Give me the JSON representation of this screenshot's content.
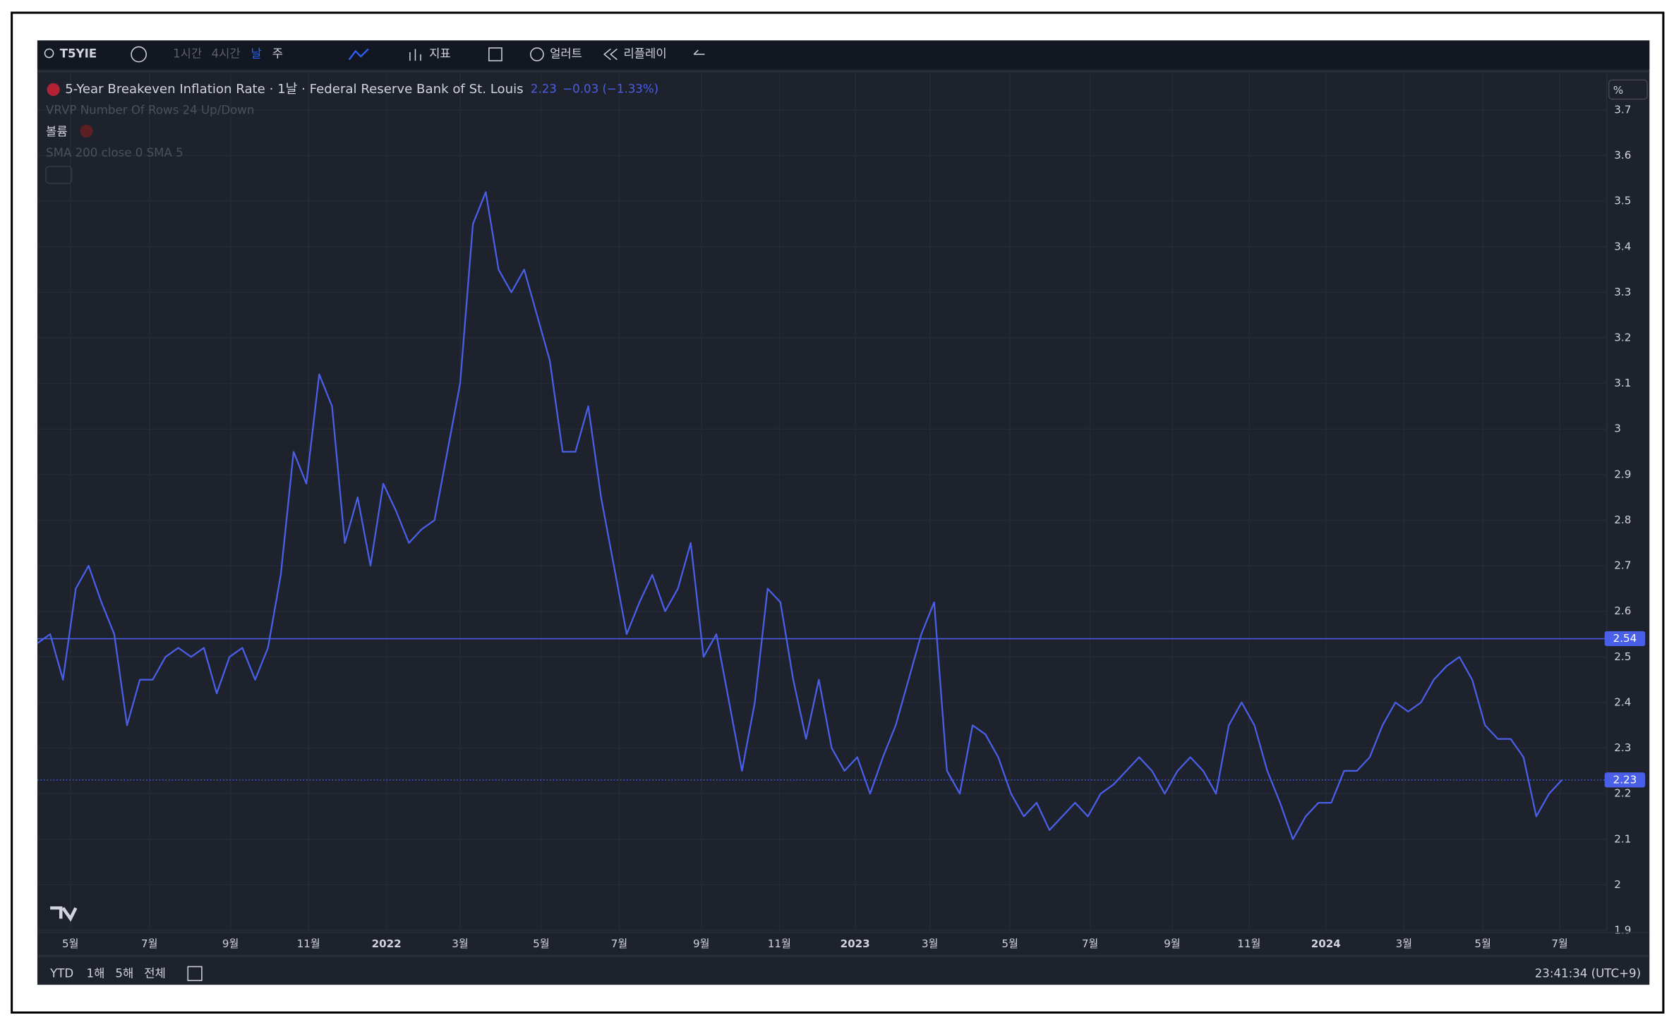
{
  "toolbar": {
    "symbol": "T5YIE",
    "intervals": [
      "1시간",
      "4시간",
      "날",
      "주"
    ],
    "indicators": "지표",
    "alert": "얼러트",
    "replay": "리플레이"
  },
  "legend": {
    "title": "5-Year Breakeven Inflation Rate · 1날 · Federal Reserve Bank of St. Louis",
    "last": "2.23",
    "change": "−0.03 (−1.33%)",
    "studies": [
      "VRVP Number Of Rows 24 Up/Down",
      "볼륨",
      "SMA 200 close 0 SMA 5"
    ]
  },
  "chart_data": {
    "type": "line",
    "color": "#4a5fe8",
    "unit": "%",
    "values": [
      2.53,
      2.55,
      2.45,
      2.65,
      2.7,
      2.62,
      2.55,
      2.35,
      2.45,
      2.45,
      2.5,
      2.52,
      2.5,
      2.52,
      2.42,
      2.5,
      2.52,
      2.45,
      2.52,
      2.68,
      2.95,
      2.88,
      3.12,
      3.05,
      2.75,
      2.85,
      2.7,
      2.88,
      2.82,
      2.75,
      2.78,
      2.8,
      2.95,
      3.1,
      3.45,
      3.52,
      3.35,
      3.3,
      3.35,
      3.25,
      3.15,
      2.95,
      2.95,
      3.05,
      2.85,
      2.7,
      2.55,
      2.62,
      2.68,
      2.6,
      2.65,
      2.75,
      2.5,
      2.55,
      2.4,
      2.25,
      2.4,
      2.65,
      2.62,
      2.45,
      2.32,
      2.45,
      2.3,
      2.25,
      2.28,
      2.2,
      2.28,
      2.35,
      2.45,
      2.55,
      2.62,
      2.25,
      2.2,
      2.35,
      2.33,
      2.28,
      2.2,
      2.15,
      2.18,
      2.12,
      2.15,
      2.18,
      2.15,
      2.2,
      2.22,
      2.25,
      2.28,
      2.25,
      2.2,
      2.25,
      2.28,
      2.25,
      2.2,
      2.35,
      2.4,
      2.35,
      2.25,
      2.18,
      2.1,
      2.15,
      2.18,
      2.18,
      2.25,
      2.25,
      2.28,
      2.35,
      2.4,
      2.38,
      2.4,
      2.45,
      2.48,
      2.5,
      2.45,
      2.35,
      2.32,
      2.32,
      2.28,
      2.15,
      2.2,
      2.23
    ],
    "ylim": [
      1.9,
      3.78
    ],
    "yticks": [
      1.9,
      2,
      2.1,
      2.2,
      2.3,
      2.4,
      2.5,
      2.6,
      2.7,
      2.8,
      2.9,
      3,
      3.1,
      3.2,
      3.3,
      3.4,
      3.5,
      3.6,
      3.7
    ],
    "xticks": [
      {
        "value": 2.58,
        "label": "5월"
      },
      {
        "value": 8.75,
        "label": "7월"
      },
      {
        "value": 15.08,
        "label": "9월"
      },
      {
        "value": 21.17,
        "label": "11월"
      },
      {
        "value": 27.25,
        "label": "2022"
      },
      {
        "value": 33,
        "label": "3월"
      },
      {
        "value": 39.33,
        "label": "5월"
      },
      {
        "value": 45.42,
        "label": "7월"
      },
      {
        "value": 51.83,
        "label": "9월"
      },
      {
        "value": 57.92,
        "label": "11월"
      },
      {
        "value": 63.83,
        "label": "2023"
      },
      {
        "value": 69.67,
        "label": "3월"
      },
      {
        "value": 75.92,
        "label": "5월"
      },
      {
        "value": 82.17,
        "label": "7월"
      },
      {
        "value": 88.58,
        "label": "9월"
      },
      {
        "value": 94.58,
        "label": "11월"
      },
      {
        "value": 100.58,
        "label": "2024"
      },
      {
        "value": 106.67,
        "label": "3월"
      },
      {
        "value": 112.83,
        "label": "5월"
      },
      {
        "value": 118.83,
        "label": "7월"
      }
    ],
    "reference_lines": [
      2.54,
      2.23
    ],
    "grid": true
  },
  "bottom_bar": {
    "ranges": [
      "YTD",
      "1해",
      "5해",
      "전체"
    ],
    "clock": "23:41:34 (UTC+9)"
  }
}
